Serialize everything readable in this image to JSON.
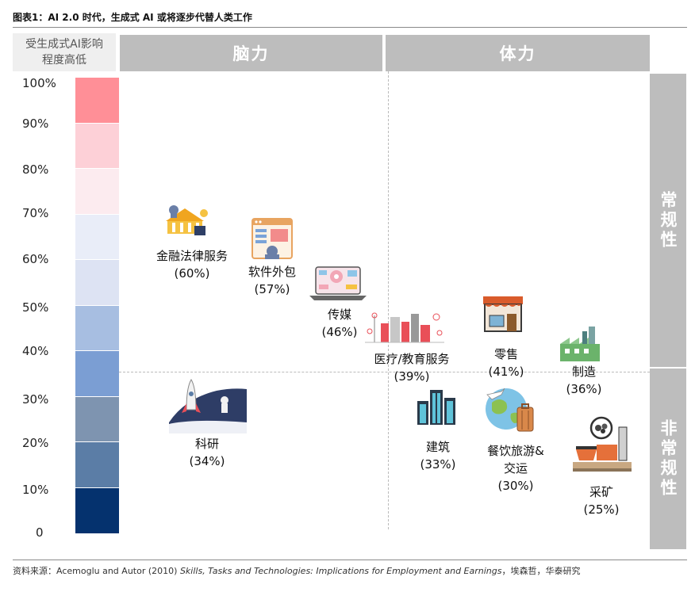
{
  "title": "图表1：AI 2.0 时代，生成式 AI 或将逐步代替人类工作",
  "scale_header_line1": "受生成式AI影响",
  "scale_header_line2": "程度高低",
  "headers": {
    "brain": "脑力",
    "body": "体力"
  },
  "side": {
    "routine": "常规性",
    "nonroutine": "非常规性"
  },
  "source": {
    "prefix": "资料来源：Acemoglu and Autor (2010) ",
    "italic": "Skills, Tasks and Technologies: Implications for Employment and Earnings",
    "suffix": "，埃森哲，华泰研究"
  },
  "colors": {
    "scale": [
      "#ff8f97",
      "#fdd0d7",
      "#fcebef",
      "#e9edf8",
      "#dde3f3",
      "#a7bee1",
      "#7b9ed3",
      "#7e94b0",
      "#5b7da6",
      "#05326e"
    ]
  },
  "chart_data": {
    "type": "scatter",
    "title": "图表1：AI 2.0 时代，生成式 AI 或将逐步代替人类工作",
    "ylabel": "受生成式AI影响程度高低",
    "ylim": [
      0,
      100
    ],
    "y_ticks": [
      "0",
      "10%",
      "20%",
      "30%",
      "40%",
      "50%",
      "60%",
      "70%",
      "80%",
      "90%",
      "100%"
    ],
    "quadrants": {
      "x": [
        "脑力",
        "体力"
      ],
      "y": [
        "常规性",
        "非常规性"
      ]
    },
    "points": [
      {
        "name": "金融法律服务",
        "pct": "(60%)",
        "value": 60,
        "category": "脑力",
        "type": "常规性",
        "icon": "bank-icon"
      },
      {
        "name": "软件外包",
        "pct": "(57%)",
        "value": 57,
        "category": "脑力",
        "type": "常规性",
        "icon": "software-window-icon"
      },
      {
        "name": "传媒",
        "pct": "(46%)",
        "value": 46,
        "category": "脑力",
        "type": "常规性",
        "icon": "tablet-media-icon"
      },
      {
        "name": "医疗/教育服务",
        "pct": "(39%)",
        "value": 39,
        "category": "体力",
        "type": "常规性",
        "icon": "city-network-icon"
      },
      {
        "name": "零售",
        "pct": "(41%)",
        "value": 41,
        "category": "体力",
        "type": "常规性",
        "icon": "shop-icon"
      },
      {
        "name": "制造",
        "pct": "(36%)",
        "value": 36,
        "category": "体力",
        "type": "常规性",
        "icon": "factory-icon"
      },
      {
        "name": "科研",
        "pct": "(34%)",
        "value": 34,
        "category": "脑力",
        "type": "非常规性",
        "icon": "rocket-icon"
      },
      {
        "name": "建筑",
        "pct": "(33%)",
        "value": 33,
        "category": "体力",
        "type": "非常规性",
        "icon": "buildings-icon"
      },
      {
        "name": "餐饮旅游&交运",
        "line2": "交运",
        "line1": "餐饮旅游&",
        "pct": "(30%)",
        "value": 30,
        "category": "体力",
        "type": "非常规性",
        "icon": "travel-globe-icon"
      },
      {
        "name": "采矿",
        "pct": "(25%)",
        "value": 25,
        "category": "体力",
        "type": "非常规性",
        "icon": "mining-icon"
      }
    ]
  }
}
